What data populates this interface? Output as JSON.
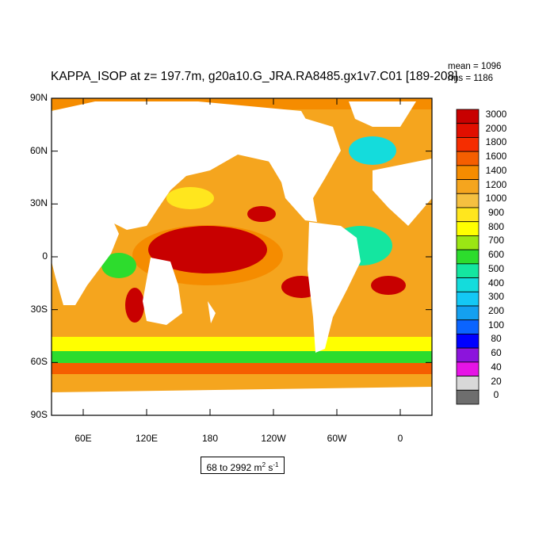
{
  "title": "KAPPA_ISOP at z= 197.7m, g20a10.G_JRA.RA8485.gx1v7.C01 [189-208]",
  "stats": {
    "mean": "mean = 1096",
    "rms": "rms = 1186"
  },
  "range_label": {
    "prefix": "68 to 2992 m",
    "sup1": "2",
    "mid": " s",
    "sup2": "-1"
  },
  "map": {
    "type": "filled-contour world ocean map",
    "lat_ticks": [
      "90N",
      "60N",
      "30N",
      "0",
      "30S",
      "60S",
      "90S"
    ],
    "lon_ticks": [
      "60E",
      "120E",
      "180",
      "120W",
      "60W",
      "0"
    ],
    "lon_range": [
      30,
      390
    ],
    "lat_range": [
      -90,
      90
    ]
  },
  "colorbar": {
    "levels": [
      "3000",
      "2000",
      "1800",
      "1600",
      "1400",
      "1200",
      "1000",
      "900",
      "800",
      "700",
      "600",
      "500",
      "400",
      "300",
      "200",
      "100",
      "80",
      "60",
      "40",
      "20",
      "0"
    ],
    "colors": [
      "#c80000",
      "#e10f00",
      "#f52d00",
      "#f55e00",
      "#f58c00",
      "#f5a51e",
      "#f5c040",
      "#ffe61e",
      "#ffff00",
      "#9be614",
      "#2ddc2d",
      "#14e6a0",
      "#14dcdc",
      "#14c8f5",
      "#14a0f0",
      "#0a64ff",
      "#0000ff",
      "#8c14dc",
      "#e614e6",
      "#d8d8d8",
      "#6e6e6e"
    ]
  }
}
